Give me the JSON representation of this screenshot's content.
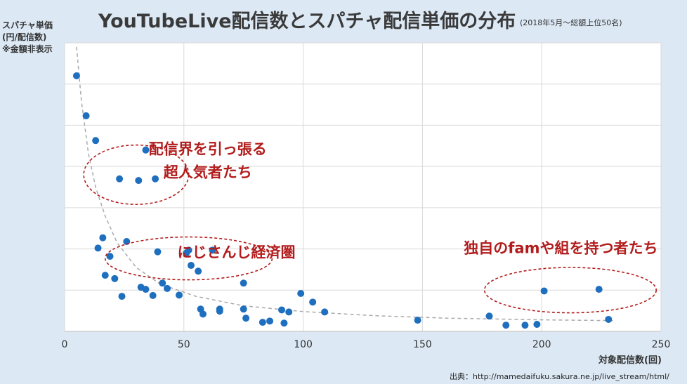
{
  "title": "YouTubeLive配信数とスパチャ配信単価の分布",
  "subtitle": "(2018年5月～総額上位50名)",
  "ylabel_lines": [
    "スパチャ単価",
    "(円/配信数)",
    "※金額非表示"
  ],
  "xlabel": "対象配信数(回)",
  "source": "出典：http://mamedaifuku.sakura.ne.jp/live_stream/html/",
  "colors": {
    "point": "#1f6fbf",
    "trend": "#aaaaaa",
    "annotation": "#b21c1c",
    "plot_bg": "#ffffff",
    "page_bg": "#dce9f5"
  },
  "chart_data": {
    "type": "scatter",
    "title": "YouTubeLive配信数とスパチャ配信単価の分布",
    "xlabel": "対象配信数(回)",
    "ylabel": "スパチャ単価(円/配信数)",
    "xlim": [
      0,
      250
    ],
    "ylim": [
      0,
      7
    ],
    "xticks": [
      0,
      50,
      100,
      150,
      200,
      250
    ],
    "grid": "horizontal and vertical",
    "y_tick_labels_hidden": true,
    "trendline": "power (dashed)",
    "points": [
      {
        "x": 5,
        "y": 6.2
      },
      {
        "x": 9,
        "y": 5.23
      },
      {
        "x": 13,
        "y": 4.63
      },
      {
        "x": 23,
        "y": 3.7
      },
      {
        "x": 31,
        "y": 3.66
      },
      {
        "x": 34,
        "y": 4.4
      },
      {
        "x": 38,
        "y": 3.7
      },
      {
        "x": 14,
        "y": 2.02
      },
      {
        "x": 16,
        "y": 2.27
      },
      {
        "x": 17,
        "y": 1.36
      },
      {
        "x": 19,
        "y": 1.82
      },
      {
        "x": 21,
        "y": 1.28
      },
      {
        "x": 24,
        "y": 0.85
      },
      {
        "x": 26,
        "y": 2.18
      },
      {
        "x": 32,
        "y": 1.07
      },
      {
        "x": 34,
        "y": 1.02
      },
      {
        "x": 37,
        "y": 0.87
      },
      {
        "x": 39,
        "y": 1.93
      },
      {
        "x": 41,
        "y": 1.17
      },
      {
        "x": 43,
        "y": 1.04
      },
      {
        "x": 48,
        "y": 0.88
      },
      {
        "x": 51,
        "y": 1.9
      },
      {
        "x": 52,
        "y": 1.97
      },
      {
        "x": 53,
        "y": 1.6
      },
      {
        "x": 56,
        "y": 1.46
      },
      {
        "x": 57,
        "y": 0.54
      },
      {
        "x": 58,
        "y": 0.42
      },
      {
        "x": 62,
        "y": 1.97
      },
      {
        "x": 65,
        "y": 0.54
      },
      {
        "x": 65,
        "y": 0.49
      },
      {
        "x": 75,
        "y": 1.17
      },
      {
        "x": 75,
        "y": 0.54
      },
      {
        "x": 76,
        "y": 0.32
      },
      {
        "x": 83,
        "y": 0.22
      },
      {
        "x": 86,
        "y": 0.25
      },
      {
        "x": 91,
        "y": 0.52
      },
      {
        "x": 92,
        "y": 0.2
      },
      {
        "x": 94,
        "y": 0.47
      },
      {
        "x": 99,
        "y": 0.92
      },
      {
        "x": 104,
        "y": 0.71
      },
      {
        "x": 109,
        "y": 0.47
      },
      {
        "x": 148,
        "y": 0.27
      },
      {
        "x": 178,
        "y": 0.37
      },
      {
        "x": 185,
        "y": 0.15
      },
      {
        "x": 193,
        "y": 0.15
      },
      {
        "x": 198,
        "y": 0.17
      },
      {
        "x": 201,
        "y": 0.98
      },
      {
        "x": 224,
        "y": 1.02
      },
      {
        "x": 228,
        "y": 0.29
      }
    ],
    "trend": [
      {
        "x": 5,
        "y": 6.9
      },
      {
        "x": 7,
        "y": 5.6
      },
      {
        "x": 10,
        "y": 4.3
      },
      {
        "x": 13,
        "y": 3.5
      },
      {
        "x": 17,
        "y": 2.8
      },
      {
        "x": 22,
        "y": 2.15
      },
      {
        "x": 30,
        "y": 1.55
      },
      {
        "x": 40,
        "y": 1.15
      },
      {
        "x": 55,
        "y": 0.85
      },
      {
        "x": 75,
        "y": 0.62
      },
      {
        "x": 100,
        "y": 0.48
      },
      {
        "x": 130,
        "y": 0.38
      },
      {
        "x": 160,
        "y": 0.32
      },
      {
        "x": 200,
        "y": 0.28
      },
      {
        "x": 230,
        "y": 0.26
      }
    ],
    "annotations": [
      {
        "lines": [
          "配信界を引っ張る",
          "超人気者たち"
        ],
        "ellipse_center": {
          "x": 30,
          "y": 3.8
        },
        "ellipse_radius": {
          "x": 22,
          "y": 0.72
        },
        "label_at": {
          "x": 60,
          "y": 4.3
        }
      },
      {
        "lines": [
          "にじさんじ経済圏"
        ],
        "ellipse_center": {
          "x": 52,
          "y": 1.77
        },
        "ellipse_radius": {
          "x": 35,
          "y": 0.52
        },
        "label_at": {
          "x": 72,
          "y": 1.8
        }
      },
      {
        "lines": [
          "独自のfamや組を持つ者たち"
        ],
        "ellipse_center": {
          "x": 212,
          "y": 1.0
        },
        "ellipse_radius": {
          "x": 36,
          "y": 0.55
        },
        "label_at": {
          "x": 208,
          "y": 1.9
        }
      }
    ]
  }
}
